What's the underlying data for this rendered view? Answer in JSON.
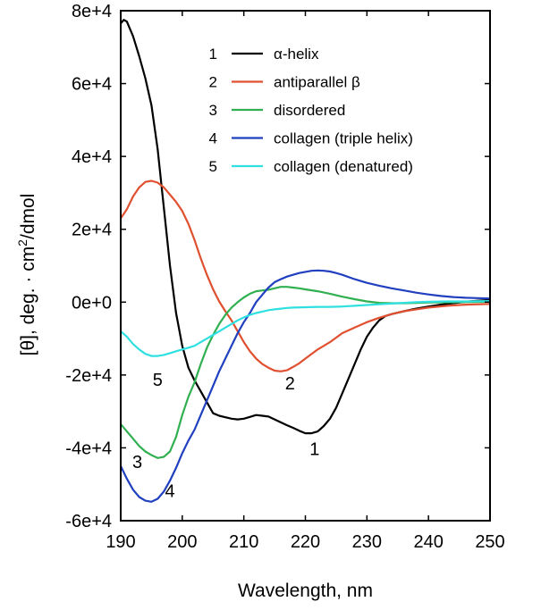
{
  "chart_data": {
    "type": "line",
    "title": "",
    "xlabel": "Wavelength, nm",
    "ylabel": "[θ], deg. · cm²/dmol",
    "ylabel_parts": {
      "pre": "[θ], deg. · cm",
      "sup": "2",
      "post": "/dmol"
    },
    "xlim": [
      190,
      250
    ],
    "ylim": [
      -60000,
      80000
    ],
    "x_ticks": [
      190,
      200,
      210,
      220,
      230,
      240,
      250
    ],
    "x_tick_labels": [
      "190",
      "200",
      "210",
      "220",
      "230",
      "240",
      "250"
    ],
    "y_ticks": [
      -60000,
      -40000,
      -20000,
      0,
      20000,
      40000,
      60000,
      80000
    ],
    "y_tick_labels": [
      "-6e+4",
      "-4e+4",
      "-2e+4",
      "0e+0",
      "2e+4",
      "4e+4",
      "6e+4",
      "8e+4"
    ],
    "grid": false,
    "legend_position": "top-right",
    "series": [
      {
        "name": "α-helix",
        "number": "1",
        "color": "#000000",
        "label_at": [
          221.5,
          -42000
        ],
        "points": [
          [
            190,
            76500
          ],
          [
            190.5,
            77500
          ],
          [
            191,
            77000
          ],
          [
            192,
            73000
          ],
          [
            193,
            67500
          ],
          [
            194,
            61500
          ],
          [
            195,
            54000
          ],
          [
            196,
            42000
          ],
          [
            197,
            26000
          ],
          [
            198,
            10000
          ],
          [
            199,
            -3000
          ],
          [
            200,
            -12000
          ],
          [
            201,
            -18000
          ],
          [
            202,
            -21500
          ],
          [
            203,
            -24500
          ],
          [
            204,
            -27500
          ],
          [
            205,
            -30500
          ],
          [
            206,
            -31200
          ],
          [
            207,
            -31600
          ],
          [
            208,
            -32000
          ],
          [
            209,
            -32200
          ],
          [
            210,
            -32000
          ],
          [
            211,
            -31500
          ],
          [
            212,
            -31000
          ],
          [
            213,
            -31200
          ],
          [
            214,
            -31400
          ],
          [
            215,
            -32200
          ],
          [
            216,
            -33000
          ],
          [
            217,
            -33800
          ],
          [
            218,
            -34500
          ],
          [
            219,
            -35300
          ],
          [
            220,
            -36000
          ],
          [
            221,
            -36000
          ],
          [
            222,
            -35500
          ],
          [
            223,
            -34000
          ],
          [
            224,
            -32000
          ],
          [
            225,
            -29000
          ],
          [
            226,
            -25000
          ],
          [
            227,
            -21000
          ],
          [
            228,
            -17000
          ],
          [
            229,
            -13000
          ],
          [
            230,
            -9500
          ],
          [
            231,
            -7000
          ],
          [
            232,
            -5000
          ],
          [
            233,
            -3800
          ],
          [
            234,
            -3300
          ],
          [
            236,
            -2500
          ],
          [
            238,
            -1800
          ],
          [
            240,
            -1200
          ],
          [
            242,
            -700
          ],
          [
            244,
            -300
          ],
          [
            246,
            100
          ],
          [
            248,
            400
          ],
          [
            250,
            600
          ]
        ]
      },
      {
        "name": "antiparallel β",
        "number": "2",
        "color": "#e05030",
        "label_at": [
          217.5,
          -24000
        ],
        "points": [
          [
            190,
            23000
          ],
          [
            191,
            25500
          ],
          [
            192,
            29000
          ],
          [
            193,
            31500
          ],
          [
            194,
            33000
          ],
          [
            195,
            33300
          ],
          [
            196,
            32800
          ],
          [
            197,
            31500
          ],
          [
            198,
            29500
          ],
          [
            199,
            27500
          ],
          [
            200,
            25000
          ],
          [
            201,
            21500
          ],
          [
            202,
            17000
          ],
          [
            203,
            12000
          ],
          [
            204,
            7500
          ],
          [
            205,
            3500
          ],
          [
            206,
            200
          ],
          [
            207,
            -2500
          ],
          [
            208,
            -5000
          ],
          [
            209,
            -8000
          ],
          [
            210,
            -11000
          ],
          [
            211,
            -13500
          ],
          [
            212,
            -15500
          ],
          [
            213,
            -17000
          ],
          [
            214,
            -18000
          ],
          [
            215,
            -18800
          ],
          [
            216,
            -19000
          ],
          [
            217,
            -18700
          ],
          [
            218,
            -17800
          ],
          [
            219,
            -16800
          ],
          [
            220,
            -15500
          ],
          [
            222,
            -13000
          ],
          [
            224,
            -11000
          ],
          [
            226,
            -8500
          ],
          [
            228,
            -7000
          ],
          [
            230,
            -5500
          ],
          [
            232,
            -4300
          ],
          [
            234,
            -3300
          ],
          [
            236,
            -2500
          ],
          [
            238,
            -2000
          ],
          [
            240,
            -1500
          ],
          [
            243,
            -1000
          ],
          [
            246,
            -700
          ],
          [
            250,
            -500
          ]
        ]
      },
      {
        "name": "disordered",
        "number": "3",
        "color": "#30b050",
        "label_at": [
          192.7,
          -45500
        ],
        "points": [
          [
            190,
            -33500
          ],
          [
            191,
            -35500
          ],
          [
            192,
            -37500
          ],
          [
            193,
            -39500
          ],
          [
            194,
            -41000
          ],
          [
            195,
            -42000
          ],
          [
            196,
            -42800
          ],
          [
            197,
            -42500
          ],
          [
            198,
            -41000
          ],
          [
            199,
            -37000
          ],
          [
            200,
            -31000
          ],
          [
            201,
            -26000
          ],
          [
            202,
            -22000
          ],
          [
            203,
            -17000
          ],
          [
            204,
            -12500
          ],
          [
            205,
            -9000
          ],
          [
            206,
            -6000
          ],
          [
            207,
            -3500
          ],
          [
            208,
            -1500
          ],
          [
            209,
            0
          ],
          [
            210,
            1300
          ],
          [
            211,
            2300
          ],
          [
            212,
            3000
          ],
          [
            213,
            3200
          ],
          [
            214,
            3400
          ],
          [
            215,
            3800
          ],
          [
            216,
            4200
          ],
          [
            217,
            4200
          ],
          [
            218,
            4000
          ],
          [
            219,
            3800
          ],
          [
            220,
            3500
          ],
          [
            222,
            3000
          ],
          [
            224,
            2300
          ],
          [
            226,
            1500
          ],
          [
            228,
            800
          ],
          [
            230,
            200
          ],
          [
            232,
            -200
          ],
          [
            234,
            -300
          ],
          [
            236,
            -300
          ],
          [
            238,
            -200
          ],
          [
            240,
            -100
          ],
          [
            245,
            0
          ],
          [
            250,
            100
          ]
        ]
      },
      {
        "name": "collagen (triple helix)",
        "number": "4",
        "color": "#2040c0",
        "label_at": [
          198,
          -53500
        ],
        "points": [
          [
            190,
            -45000
          ],
          [
            191,
            -48500
          ],
          [
            192,
            -51500
          ],
          [
            193,
            -53500
          ],
          [
            194,
            -54500
          ],
          [
            195,
            -54800
          ],
          [
            196,
            -54000
          ],
          [
            197,
            -52000
          ],
          [
            198,
            -49000
          ],
          [
            199,
            -45500
          ],
          [
            200,
            -41500
          ],
          [
            201,
            -38000
          ],
          [
            202,
            -35000
          ],
          [
            203,
            -31000
          ],
          [
            204,
            -27000
          ],
          [
            205,
            -23000
          ],
          [
            206,
            -19000
          ],
          [
            207,
            -15500
          ],
          [
            208,
            -12000
          ],
          [
            209,
            -8500
          ],
          [
            210,
            -5500
          ],
          [
            211,
            -3000
          ],
          [
            212,
            0
          ],
          [
            213,
            2000
          ],
          [
            214,
            4000
          ],
          [
            215,
            5500
          ],
          [
            216,
            6300
          ],
          [
            217,
            7000
          ],
          [
            218,
            7500
          ],
          [
            219,
            8000
          ],
          [
            220,
            8300
          ],
          [
            221,
            8600
          ],
          [
            222,
            8700
          ],
          [
            223,
            8600
          ],
          [
            224,
            8400
          ],
          [
            225,
            8000
          ],
          [
            226,
            7500
          ],
          [
            228,
            6300
          ],
          [
            230,
            5300
          ],
          [
            232,
            4500
          ],
          [
            234,
            3800
          ],
          [
            236,
            3200
          ],
          [
            238,
            2600
          ],
          [
            240,
            2100
          ],
          [
            242,
            1700
          ],
          [
            244,
            1400
          ],
          [
            246,
            1200
          ],
          [
            248,
            1100
          ],
          [
            250,
            1000
          ]
        ]
      },
      {
        "name": "collagen (denatured)",
        "number": "5",
        "color": "#30e0e0",
        "label_at": [
          196,
          -23000
        ],
        "points": [
          [
            190,
            -8000
          ],
          [
            191,
            -9500
          ],
          [
            192,
            -11500
          ],
          [
            193,
            -13000
          ],
          [
            194,
            -14200
          ],
          [
            195,
            -14800
          ],
          [
            196,
            -14800
          ],
          [
            197,
            -14500
          ],
          [
            198,
            -14000
          ],
          [
            199,
            -13500
          ],
          [
            200,
            -13000
          ],
          [
            201,
            -12500
          ],
          [
            202,
            -12000
          ],
          [
            203,
            -11000
          ],
          [
            204,
            -10000
          ],
          [
            205,
            -9000
          ],
          [
            206,
            -8000
          ],
          [
            207,
            -7000
          ],
          [
            208,
            -6000
          ],
          [
            209,
            -5000
          ],
          [
            210,
            -4200
          ],
          [
            211,
            -3500
          ],
          [
            212,
            -3000
          ],
          [
            213,
            -2600
          ],
          [
            214,
            -2200
          ],
          [
            215,
            -2000
          ],
          [
            216,
            -1800
          ],
          [
            217,
            -1600
          ],
          [
            218,
            -1500
          ],
          [
            220,
            -1400
          ],
          [
            222,
            -1300
          ],
          [
            224,
            -1300
          ],
          [
            226,
            -1200
          ],
          [
            228,
            -1000
          ],
          [
            230,
            -800
          ],
          [
            232,
            -600
          ],
          [
            234,
            -400
          ],
          [
            236,
            -200
          ],
          [
            238,
            0
          ],
          [
            240,
            100
          ],
          [
            243,
            200
          ],
          [
            246,
            200
          ],
          [
            250,
            300
          ]
        ]
      }
    ]
  }
}
